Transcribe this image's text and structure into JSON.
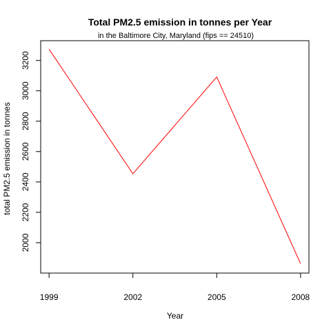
{
  "chart_data": {
    "type": "line",
    "title": "Total PM2.5 emission in tonnes per Year",
    "subtitle": "in the Baltimore City, Maryland (fips == 24510)",
    "xlabel": "Year",
    "ylabel": "total PM2.5 emission in tonnes",
    "x": [
      1999,
      2002,
      2005,
      2008
    ],
    "series": [
      {
        "values": [
          3274,
          2454,
          3091,
          1862
        ],
        "color": "#ff0000"
      }
    ],
    "xticks": [
      1999,
      2002,
      2005,
      2008
    ],
    "xtick_labels": [
      "1999",
      "2002",
      "2005",
      "2008"
    ],
    "yticks": [
      2000,
      2200,
      2400,
      2600,
      2800,
      3000,
      3200
    ],
    "ytick_labels": [
      "2000",
      "2200",
      "2400",
      "2600",
      "2800",
      "3000",
      "3200"
    ],
    "xlim": [
      1998.7,
      2008.3
    ],
    "ylim": [
      1800,
      3330
    ],
    "grid": false,
    "legend": "none"
  }
}
